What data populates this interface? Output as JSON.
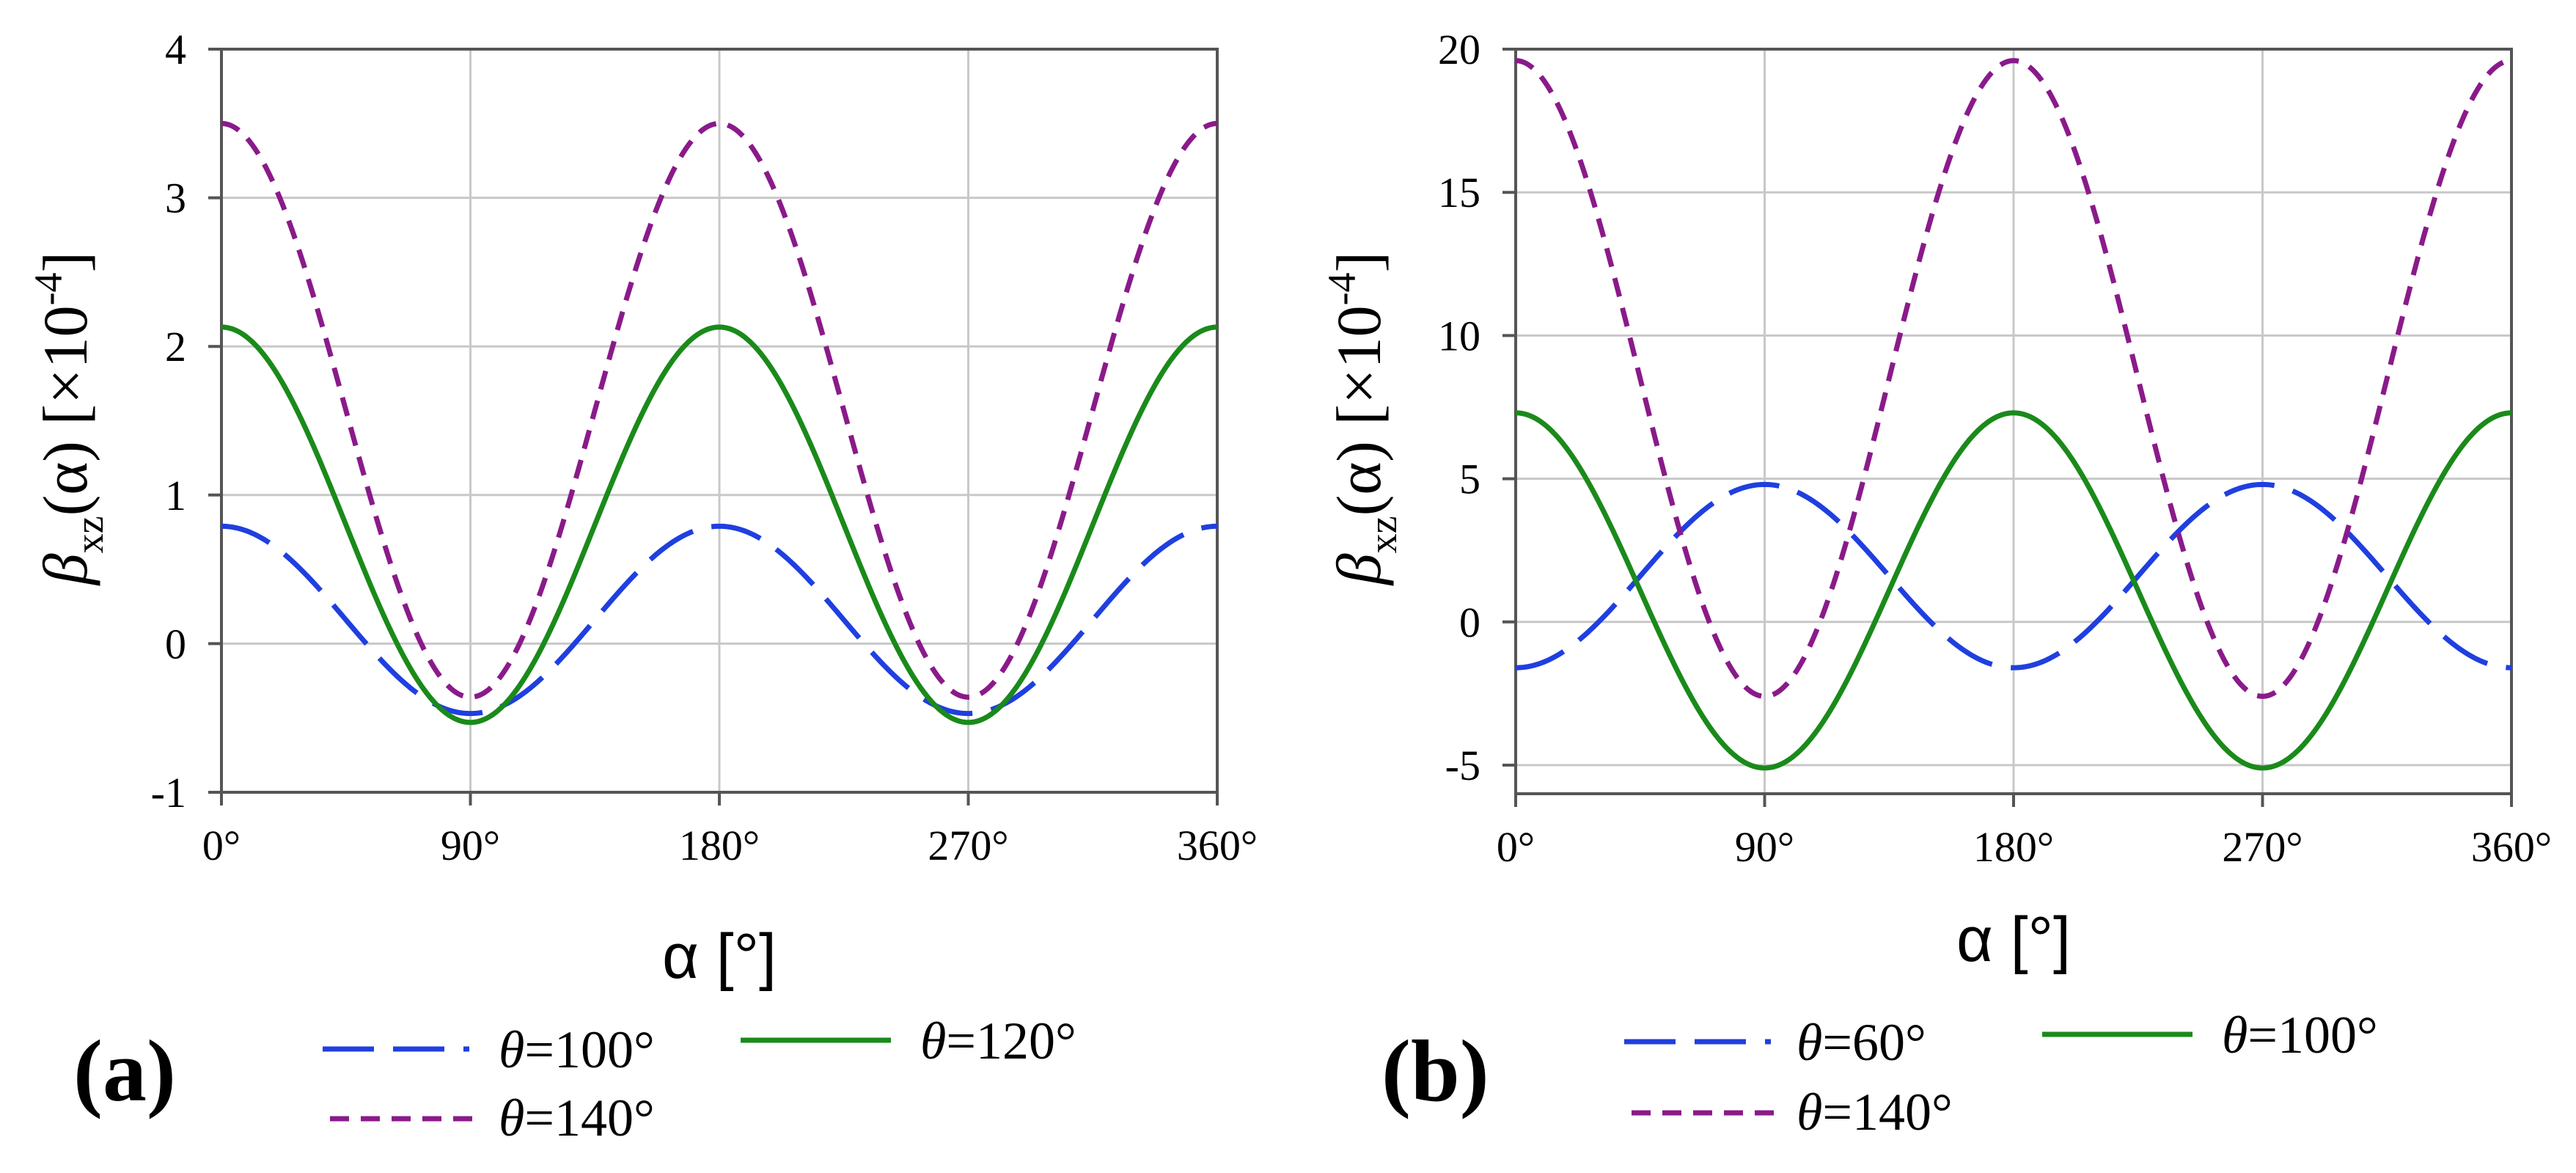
{
  "chart_data": [
    {
      "type": "line",
      "panel_label": "(a)",
      "title": "",
      "xlabel": "α [°]",
      "ylabel": {
        "symbol": "β",
        "subscript": "xz",
        "arg": "(α) [×10",
        "exponent": "-4",
        "close": "]"
      },
      "xlim": [
        0,
        360
      ],
      "ylim": [
        -1,
        4
      ],
      "xticks": [
        0,
        90,
        180,
        270,
        360
      ],
      "xtick_labels": [
        "0°",
        "90°",
        "180°",
        "270°",
        "360°"
      ],
      "yticks": [
        -1,
        0,
        1,
        2,
        3,
        4
      ],
      "ytick_labels": [
        "-1",
        "0",
        "1",
        "2",
        "3",
        "4"
      ],
      "grid": true,
      "x": [
        0,
        45,
        90,
        135,
        180,
        225,
        270,
        315,
        360
      ],
      "series": [
        {
          "name": "θ=100°",
          "label_symbol": "θ",
          "label_value": "=100°",
          "color": "#1f3fe0",
          "dash": "long-dash",
          "model": {
            "mean": 0.16,
            "amp": 0.63
          },
          "values": [
            0.78,
            0.16,
            -0.47,
            0.16,
            0.78,
            0.16,
            -0.47,
            0.16,
            0.78
          ]
        },
        {
          "name": "θ=120°",
          "label_symbol": "θ",
          "label_value": "=120°",
          "color": "#1a8a1a",
          "dash": "solid",
          "model": {
            "mean": 0.8,
            "amp": 1.33
          },
          "values": [
            2.13,
            0.8,
            -0.53,
            0.8,
            2.13,
            0.8,
            -0.53,
            0.8,
            2.13
          ]
        },
        {
          "name": "θ=140°",
          "label_symbol": "θ",
          "label_value": "=140°",
          "color": "#8a1a8a",
          "dash": "short-dash",
          "model": {
            "mean": 1.57,
            "amp": 1.93
          },
          "values": [
            3.5,
            1.57,
            -0.36,
            1.57,
            3.5,
            1.57,
            -0.36,
            1.57,
            3.5
          ]
        }
      ],
      "legend_location": "bottom"
    },
    {
      "type": "line",
      "panel_label": "(b)",
      "title": "",
      "xlabel": "α [°]",
      "ylabel": {
        "symbol": "β",
        "subscript": "xz",
        "arg": "(α) [×10",
        "exponent": "-4",
        "close": "]"
      },
      "xlim": [
        0,
        360
      ],
      "ylim": [
        -6,
        20
      ],
      "xticks": [
        0,
        90,
        180,
        270,
        360
      ],
      "xtick_labels": [
        "0°",
        "90°",
        "180°",
        "270°",
        "360°"
      ],
      "yticks": [
        -5,
        0,
        5,
        10,
        15,
        20
      ],
      "ytick_labels": [
        "-5",
        "0",
        "5",
        "10",
        "15",
        "20"
      ],
      "grid": true,
      "x": [
        0,
        45,
        90,
        135,
        180,
        225,
        270,
        315,
        360
      ],
      "series": [
        {
          "name": "θ=60°",
          "label_symbol": "θ",
          "label_value": "=60°",
          "color": "#1f3fe0",
          "dash": "long-dash",
          "model": {
            "mean": 1.6,
            "amp": -3.2
          },
          "values": [
            -1.6,
            1.6,
            4.8,
            1.6,
            -1.6,
            1.6,
            4.8,
            1.6,
            -1.6
          ]
        },
        {
          "name": "θ=100°",
          "label_symbol": "θ",
          "label_value": "=100°",
          "color": "#1a8a1a",
          "dash": "solid",
          "model": {
            "mean": 1.1,
            "amp": 6.2
          },
          "values": [
            7.3,
            1.1,
            -5.1,
            1.1,
            7.3,
            1.1,
            -5.1,
            1.1,
            7.3
          ]
        },
        {
          "name": "θ=140°",
          "label_symbol": "θ",
          "label_value": "=140°",
          "color": "#8a1a8a",
          "dash": "short-dash",
          "model": {
            "mean": 8.5,
            "amp": 11.1
          },
          "values": [
            19.6,
            8.5,
            -2.6,
            8.5,
            19.6,
            8.5,
            -2.6,
            8.5,
            19.6
          ]
        }
      ],
      "legend_location": "bottom"
    }
  ]
}
